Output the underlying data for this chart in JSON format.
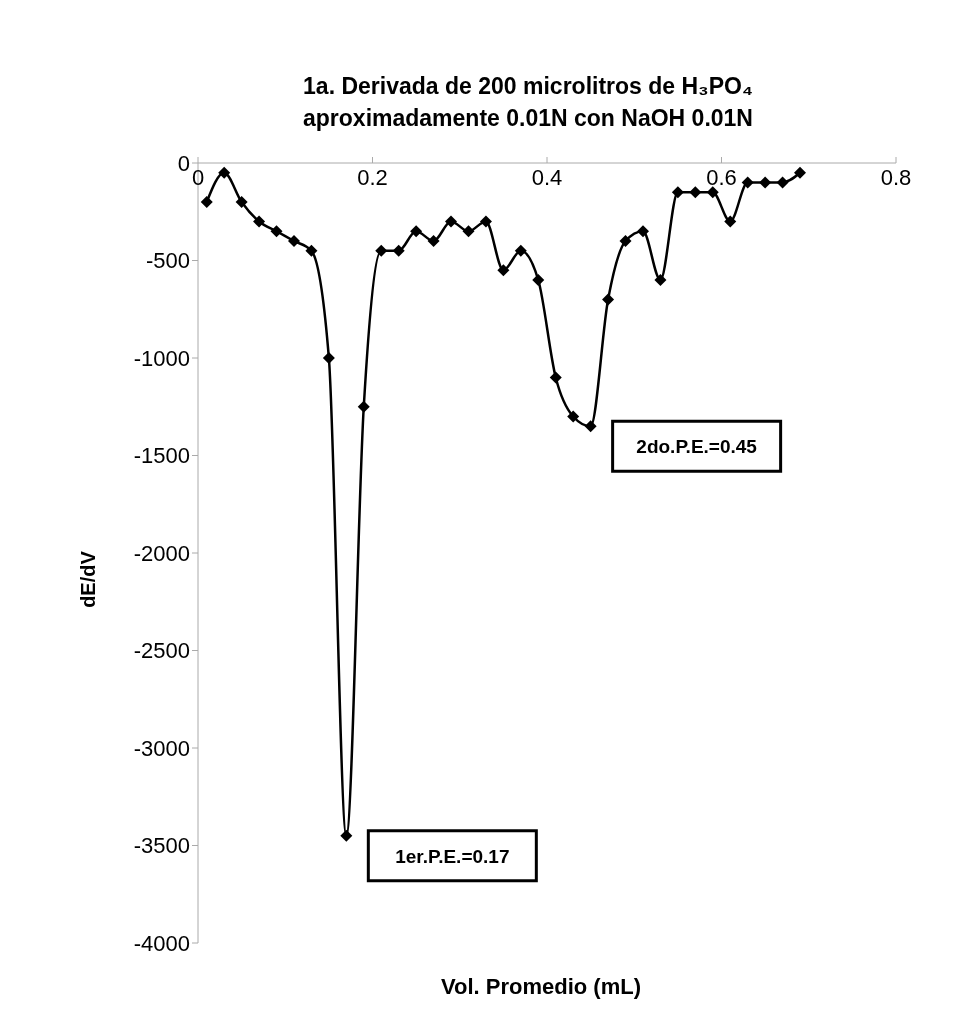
{
  "chart_data": {
    "type": "line",
    "title": "1a. Derivada de 200 microlitros de H₃PO₄ aproximadamente 0.01N con NaOH 0.01N",
    "xlabel": "Vol.  Promedio (mL)",
    "ylabel": "dE/dV",
    "x": [
      0.01,
      0.03,
      0.05,
      0.07,
      0.09,
      0.11,
      0.13,
      0.15,
      0.17,
      0.19,
      0.21,
      0.23,
      0.25,
      0.27,
      0.29,
      0.31,
      0.33,
      0.35,
      0.37,
      0.39,
      0.41,
      0.43,
      0.45,
      0.47,
      0.49,
      0.51,
      0.53,
      0.55,
      0.57,
      0.59,
      0.61,
      0.63,
      0.65,
      0.67,
      0.69
    ],
    "series": [
      {
        "color": "#000000",
        "values": [
          -200,
          -50,
          -200,
          -300,
          -350,
          -400,
          -450,
          -1000,
          -3450,
          -1250,
          -450,
          -450,
          -350,
          -400,
          -300,
          -350,
          -300,
          -550,
          -450,
          -600,
          -1100,
          -1300,
          -1350,
          -700,
          -400,
          -350,
          -600,
          -150,
          -150,
          -150,
          -300,
          -100,
          -100,
          -100,
          -50
        ]
      }
    ],
    "xlim": [
      0,
      0.8
    ],
    "xticks": [
      0,
      0.2,
      0.4,
      0.6,
      0.8
    ],
    "ylim": [
      -4000,
      0
    ],
    "yticks": [
      0,
      -500,
      -1000,
      -1500,
      -2000,
      -2500,
      -3000,
      -3500,
      -4000
    ],
    "marker": "diamond",
    "line_style": "solid",
    "annotations": [
      {
        "text": "1er.P.E.=0.17",
        "x": 0.17,
        "y": -3450
      },
      {
        "text": "2do.P.E.=0.45",
        "x": 0.45,
        "y": -1350
      }
    ]
  }
}
